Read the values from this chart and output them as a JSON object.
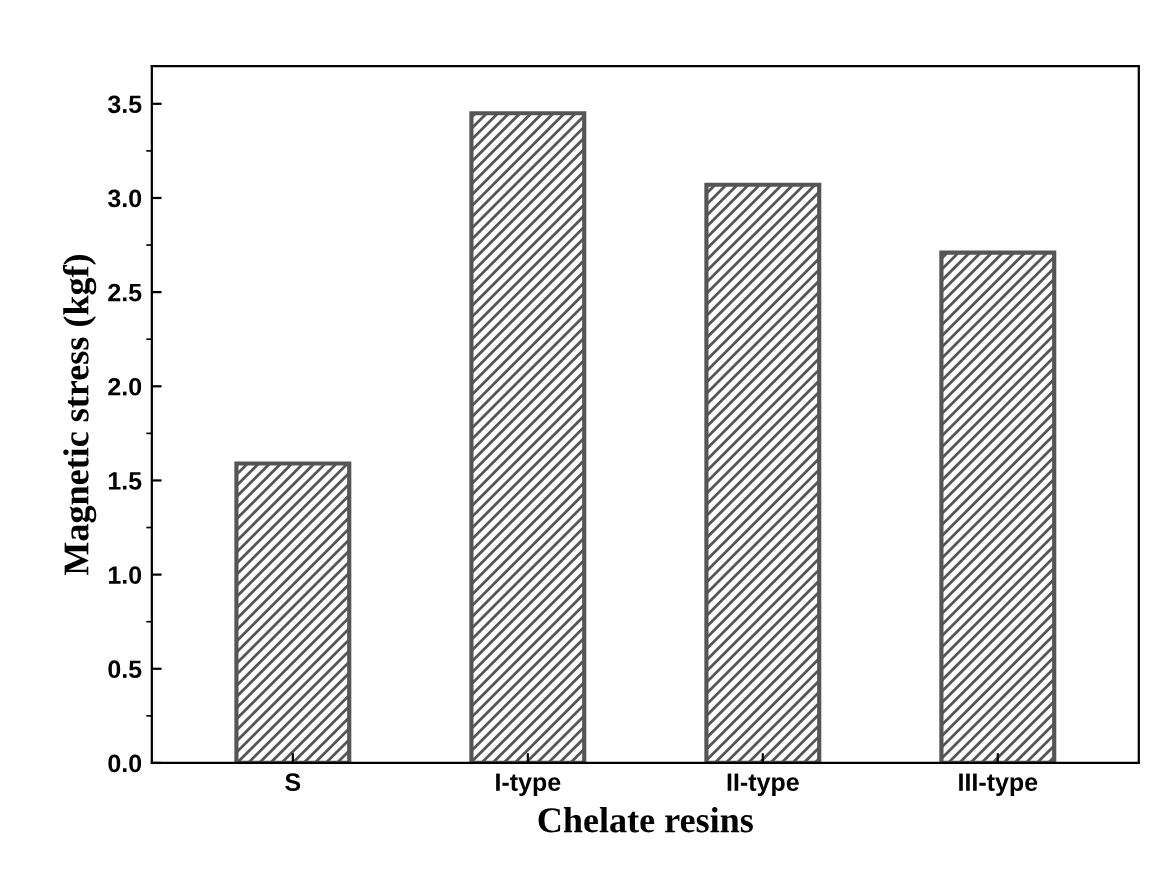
{
  "chart_data": {
    "type": "bar",
    "xlabel": "Chelate resins",
    "ylabel": "Magnetic stress (kgf)",
    "categories": [
      "S",
      "I-type",
      "II-type",
      "III-type"
    ],
    "values": [
      1.59,
      3.45,
      3.07,
      2.71
    ],
    "color": "#555555",
    "ylim": [
      0,
      3.7
    ],
    "yticks": [
      {
        "value": 0,
        "label": "0.0"
      },
      0.5,
      {
        "value": 1,
        "label": "1.0"
      },
      1.5,
      {
        "value": 2,
        "label": "2.0"
      },
      2.5,
      {
        "value": 3,
        "label": "3.0"
      },
      3.5
    ],
    "grid": false
  }
}
